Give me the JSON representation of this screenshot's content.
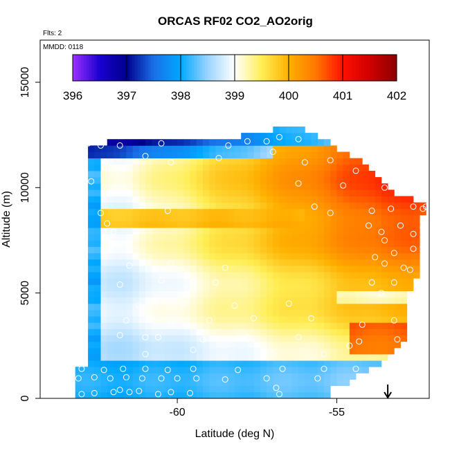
{
  "chart_data": {
    "type": "heatmap",
    "title": "ORCAS RF02 CO2_AO2orig",
    "flights_note": "Flts: 2",
    "date_note": "MMDD: 0118",
    "xlabel": "Latitude (deg N)",
    "ylabel": "Altitude (m)",
    "xlim": [
      -64.3,
      -52.1
    ],
    "ylim": [
      0,
      17000
    ],
    "x_ticks": [
      -60,
      -55
    ],
    "y_ticks": [
      0,
      5000,
      10000,
      15000
    ],
    "colorbar": {
      "min": 396,
      "max": 402,
      "ticks": [
        396,
        397,
        398,
        399,
        400,
        401,
        402
      ],
      "stops": [
        {
          "v": 396.0,
          "color": "#9b30ff"
        },
        {
          "v": 396.5,
          "color": "#1a00d0"
        },
        {
          "v": 397.0,
          "color": "#00008b"
        },
        {
          "v": 397.5,
          "color": "#1a6fe8"
        },
        {
          "v": 398.0,
          "color": "#00a8ff"
        },
        {
          "v": 398.5,
          "color": "#9ad4ff"
        },
        {
          "v": 399.0,
          "color": "#ffffff"
        },
        {
          "v": 399.5,
          "color": "#ffee55"
        },
        {
          "v": 400.0,
          "color": "#ffb000"
        },
        {
          "v": 400.5,
          "color": "#ff7800"
        },
        {
          "v": 401.0,
          "color": "#ff1000"
        },
        {
          "v": 401.5,
          "color": "#d00000"
        },
        {
          "v": 402.0,
          "color": "#8b0000"
        }
      ]
    },
    "field": {
      "lat_start": -63.2,
      "lat_step": 0.2,
      "alt_start": 0,
      "alt_step": 300,
      "rows": [
        {
          "alt_base": 0,
          "lat_min": -63.2,
          "lat_max": -55.2
        },
        {
          "alt_base": 300,
          "lat_min": -63.2,
          "lat_max": -55.2
        },
        {
          "alt_base": 600,
          "lat_min": -63.2,
          "lat_max": -54.6
        },
        {
          "alt_base": 900,
          "lat_min": -63.2,
          "lat_max": -54.4
        },
        {
          "alt_base": 1200,
          "lat_min": -63.2,
          "lat_max": -54.0
        },
        {
          "alt_base": 1500,
          "lat_min": -62.8,
          "lat_max": -53.6
        },
        {
          "alt_base": 1800,
          "lat_min": -62.8,
          "lat_max": -53.4
        },
        {
          "alt_base": 2100,
          "lat_min": -62.8,
          "lat_max": -53.2
        },
        {
          "alt_base": 2400,
          "lat_min": -62.8,
          "lat_max": -53.0
        },
        {
          "alt_base": 2700,
          "lat_min": -62.8,
          "lat_max": -52.8
        },
        {
          "alt_base": 3000,
          "lat_min": -62.8,
          "lat_max": -52.8
        },
        {
          "alt_base": 3300,
          "lat_min": -62.8,
          "lat_max": -52.8
        },
        {
          "alt_base": 3600,
          "lat_min": -62.8,
          "lat_max": -52.8
        },
        {
          "alt_base": 3900,
          "lat_min": -62.8,
          "lat_max": -52.8
        },
        {
          "alt_base": 4200,
          "lat_min": -62.8,
          "lat_max": -52.8
        },
        {
          "alt_base": 4500,
          "lat_min": -62.8,
          "lat_max": -52.8
        },
        {
          "alt_base": 4800,
          "lat_min": -62.8,
          "lat_max": -52.8
        },
        {
          "alt_base": 5100,
          "lat_min": -62.8,
          "lat_max": -52.6
        },
        {
          "alt_base": 5400,
          "lat_min": -62.8,
          "lat_max": -52.6
        },
        {
          "alt_base": 5700,
          "lat_min": -62.8,
          "lat_max": -52.4
        },
        {
          "alt_base": 6000,
          "lat_min": -62.8,
          "lat_max": -52.4
        },
        {
          "alt_base": 6300,
          "lat_min": -62.8,
          "lat_max": -52.4
        },
        {
          "alt_base": 6600,
          "lat_min": -62.8,
          "lat_max": -52.4
        },
        {
          "alt_base": 6900,
          "lat_min": -62.8,
          "lat_max": -52.4
        },
        {
          "alt_base": 7200,
          "lat_min": -62.8,
          "lat_max": -52.4
        },
        {
          "alt_base": 7500,
          "lat_min": -62.8,
          "lat_max": -52.4
        },
        {
          "alt_base": 7800,
          "lat_min": -62.8,
          "lat_max": -52.4
        },
        {
          "alt_base": 8100,
          "lat_min": -62.8,
          "lat_max": -52.4
        },
        {
          "alt_base": 8400,
          "lat_min": -62.8,
          "lat_max": -52.4
        },
        {
          "alt_base": 8700,
          "lat_min": -62.8,
          "lat_max": -52.2
        },
        {
          "alt_base": 9000,
          "lat_min": -62.8,
          "lat_max": -52.2
        },
        {
          "alt_base": 9300,
          "lat_min": -62.8,
          "lat_max": -52.6
        },
        {
          "alt_base": 9600,
          "lat_min": -62.8,
          "lat_max": -53.2
        },
        {
          "alt_base": 9900,
          "lat_min": -62.8,
          "lat_max": -53.4
        },
        {
          "alt_base": 10200,
          "lat_min": -62.8,
          "lat_max": -53.6
        },
        {
          "alt_base": 10500,
          "lat_min": -62.8,
          "lat_max": -53.8
        },
        {
          "alt_base": 10800,
          "lat_min": -62.8,
          "lat_max": -54.0
        },
        {
          "alt_base": 11100,
          "lat_min": -62.8,
          "lat_max": -54.2
        },
        {
          "alt_base": 11400,
          "lat_min": -62.8,
          "lat_max": -54.6
        },
        {
          "alt_base": 11700,
          "lat_min": -62.8,
          "lat_max": -55.0
        },
        {
          "alt_base": 12000,
          "lat_min": -62.2,
          "lat_max": -55.2
        },
        {
          "alt_base": 12300,
          "lat_min": -58.0,
          "lat_max": -55.6
        },
        {
          "alt_base": 12600,
          "lat_min": -57.0,
          "lat_max": -56.0
        }
      ]
    },
    "observation_points": [
      {
        "lat": -63.0,
        "alt": 200
      },
      {
        "lat": -62.6,
        "alt": 250
      },
      {
        "lat": -62.0,
        "alt": 300
      },
      {
        "lat": -61.8,
        "alt": 400
      },
      {
        "lat": -61.5,
        "alt": 300
      },
      {
        "lat": -61.2,
        "alt": 350
      },
      {
        "lat": -60.6,
        "alt": 200
      },
      {
        "lat": -60.2,
        "alt": 300
      },
      {
        "lat": -59.6,
        "alt": 250
      },
      {
        "lat": -56.9,
        "alt": 500
      },
      {
        "lat": -56.8,
        "alt": 200
      },
      {
        "lat": -63.1,
        "alt": 950
      },
      {
        "lat": -62.6,
        "alt": 1000
      },
      {
        "lat": -62.1,
        "alt": 950
      },
      {
        "lat": -61.6,
        "alt": 1000
      },
      {
        "lat": -61.1,
        "alt": 950
      },
      {
        "lat": -60.5,
        "alt": 950
      },
      {
        "lat": -60.0,
        "alt": 950
      },
      {
        "lat": -59.4,
        "alt": 950
      },
      {
        "lat": -58.5,
        "alt": 900
      },
      {
        "lat": -57.2,
        "alt": 950
      },
      {
        "lat": -55.6,
        "alt": 950
      },
      {
        "lat": -63.0,
        "alt": 1400
      },
      {
        "lat": -62.3,
        "alt": 1350
      },
      {
        "lat": -61.7,
        "alt": 1400
      },
      {
        "lat": -61.0,
        "alt": 1400
      },
      {
        "lat": -60.3,
        "alt": 1350
      },
      {
        "lat": -59.5,
        "alt": 1400
      },
      {
        "lat": -58.1,
        "alt": 1350
      },
      {
        "lat": -56.7,
        "alt": 1400
      },
      {
        "lat": -55.4,
        "alt": 1400
      },
      {
        "lat": -54.4,
        "alt": 1400
      },
      {
        "lat": -61.0,
        "alt": 2100
      },
      {
        "lat": -59.5,
        "alt": 2300
      },
      {
        "lat": -57.0,
        "alt": 2100
      },
      {
        "lat": -55.4,
        "alt": 2100
      },
      {
        "lat": -54.6,
        "alt": 2500
      },
      {
        "lat": -53.0,
        "alt": 2100
      },
      {
        "lat": -61.8,
        "alt": 3000
      },
      {
        "lat": -61.0,
        "alt": 2900
      },
      {
        "lat": -60.6,
        "alt": 2900
      },
      {
        "lat": -59.2,
        "alt": 2800
      },
      {
        "lat": -57.8,
        "alt": 2900
      },
      {
        "lat": -56.2,
        "alt": 2900
      },
      {
        "lat": -54.3,
        "alt": 2700
      },
      {
        "lat": -53.1,
        "alt": 2800
      },
      {
        "lat": -61.6,
        "alt": 3700
      },
      {
        "lat": -60.8,
        "alt": 3900
      },
      {
        "lat": -60.2,
        "alt": 3500
      },
      {
        "lat": -59.0,
        "alt": 3700
      },
      {
        "lat": -57.6,
        "alt": 3800
      },
      {
        "lat": -55.8,
        "alt": 3800
      },
      {
        "lat": -54.2,
        "alt": 3500
      },
      {
        "lat": -53.2,
        "alt": 3700
      },
      {
        "lat": -61.2,
        "alt": 4400
      },
      {
        "lat": -59.8,
        "alt": 4500
      },
      {
        "lat": -58.2,
        "alt": 4400
      },
      {
        "lat": -56.5,
        "alt": 4500
      },
      {
        "lat": -53.6,
        "alt": 5000
      },
      {
        "lat": -61.8,
        "alt": 5400
      },
      {
        "lat": -60.5,
        "alt": 5600
      },
      {
        "lat": -58.8,
        "alt": 5500
      },
      {
        "lat": -53.9,
        "alt": 5500
      },
      {
        "lat": -53.2,
        "alt": 5500
      },
      {
        "lat": -61.5,
        "alt": 6300
      },
      {
        "lat": -60.2,
        "alt": 6400
      },
      {
        "lat": -58.5,
        "alt": 6200
      },
      {
        "lat": -53.5,
        "alt": 6400
      },
      {
        "lat": -52.9,
        "alt": 6200
      },
      {
        "lat": -52.7,
        "alt": 6100
      },
      {
        "lat": -53.8,
        "alt": 6700
      },
      {
        "lat": -53.2,
        "alt": 6900
      },
      {
        "lat": -52.6,
        "alt": 7100
      },
      {
        "lat": -52.6,
        "alt": 7800
      },
      {
        "lat": -53.5,
        "alt": 7500
      },
      {
        "lat": -52.3,
        "alt": 7200
      },
      {
        "lat": -62.0,
        "alt": 7900
      },
      {
        "lat": -53.6,
        "alt": 7900
      },
      {
        "lat": -62.2,
        "alt": 8300
      },
      {
        "lat": -54.0,
        "alt": 8200
      },
      {
        "lat": -53.0,
        "alt": 8200
      },
      {
        "lat": -52.3,
        "alt": 8100
      },
      {
        "lat": -62.4,
        "alt": 8800
      },
      {
        "lat": -60.3,
        "alt": 8900
      },
      {
        "lat": -55.2,
        "alt": 8800
      },
      {
        "lat": -53.9,
        "alt": 8900
      },
      {
        "lat": -53.3,
        "alt": 9000
      },
      {
        "lat": -52.6,
        "alt": 9100
      },
      {
        "lat": -52.3,
        "alt": 9000
      },
      {
        "lat": -52.2,
        "alt": 9100
      },
      {
        "lat": -55.7,
        "alt": 9100
      },
      {
        "lat": -56.2,
        "alt": 10200
      },
      {
        "lat": -54.8,
        "alt": 10100
      },
      {
        "lat": -53.5,
        "alt": 10000
      },
      {
        "lat": -62.7,
        "alt": 10300
      },
      {
        "lat": -62.9,
        "alt": 11000
      },
      {
        "lat": -61.0,
        "alt": 11500
      },
      {
        "lat": -60.2,
        "alt": 11200
      },
      {
        "lat": -58.7,
        "alt": 11400
      },
      {
        "lat": -57.0,
        "alt": 11700
      },
      {
        "lat": -56.0,
        "alt": 11200
      },
      {
        "lat": -55.2,
        "alt": 11300
      },
      {
        "lat": -54.4,
        "alt": 10800
      },
      {
        "lat": -63.0,
        "alt": 12000
      },
      {
        "lat": -62.8,
        "alt": 12100
      },
      {
        "lat": -62.4,
        "alt": 12000
      },
      {
        "lat": -61.8,
        "alt": 12000
      },
      {
        "lat": -60.5,
        "alt": 12100
      },
      {
        "lat": -58.4,
        "alt": 12000
      },
      {
        "lat": -57.8,
        "alt": 12200
      },
      {
        "lat": -57.2,
        "alt": 12200
      },
      {
        "lat": -56.8,
        "alt": 12400
      },
      {
        "lat": -56.2,
        "alt": 12300
      }
    ],
    "marker": {
      "lat": -53.4,
      "alt": 0,
      "symbol": "down-arrow"
    }
  }
}
